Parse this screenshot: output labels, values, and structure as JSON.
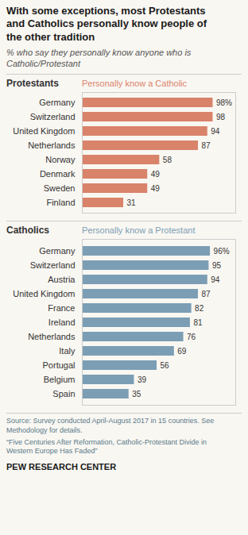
{
  "title": "With some exceptions, most Protestants\nand Catholics personally know people of\nthe other tradition",
  "subtitle": "% who say they personally know anyone who is\nCatholic/Protestant",
  "annotations": [
    "Source: Survey conducted April-August 2017 in 15 countries. See\nMethodology for details.",
    "“Five Centuries After Reformation, Catholic-Protestant Divide in\nWestern Europe Has Faded”",
    "PEW RESEARCH CENTER"
  ],
  "chart_data": [
    {
      "type": "bar",
      "orientation": "horizontal",
      "title": "Protestants",
      "subtitle": "Personally know a Catholic",
      "categories": [
        "Germany",
        "Switzerland",
        "United Kingdom",
        "Netherlands",
        "Norway",
        "Denmark",
        "Sweden",
        "Finland"
      ],
      "values": [
        98,
        98,
        94,
        87,
        58,
        49,
        49,
        31
      ],
      "value_labels": [
        "98%",
        "98",
        "94",
        "87",
        "58",
        "49",
        "49",
        "31"
      ],
      "color": "#d9836b",
      "xlim": [
        0,
        115
      ],
      "data_labels": true,
      "tick_labels": "y",
      "grid": false
    },
    {
      "type": "bar",
      "orientation": "horizontal",
      "title": "Catholics",
      "subtitle": "Personally know a Protestant",
      "categories": [
        "Germany",
        "Switzerland",
        "Austria",
        "United Kingdom",
        "France",
        "Ireland",
        "Netherlands",
        "Italy",
        "Portugal",
        "Belgium",
        "Spain"
      ],
      "values": [
        96,
        95,
        94,
        87,
        82,
        81,
        76,
        69,
        56,
        39,
        35
      ],
      "value_labels": [
        "96%",
        "95",
        "94",
        "87",
        "82",
        "81",
        "76",
        "69",
        "56",
        "39",
        "35"
      ],
      "color": "#7b9eb5",
      "xlim": [
        0,
        115
      ],
      "data_labels": true,
      "tick_labels": "y",
      "grid": false
    }
  ]
}
